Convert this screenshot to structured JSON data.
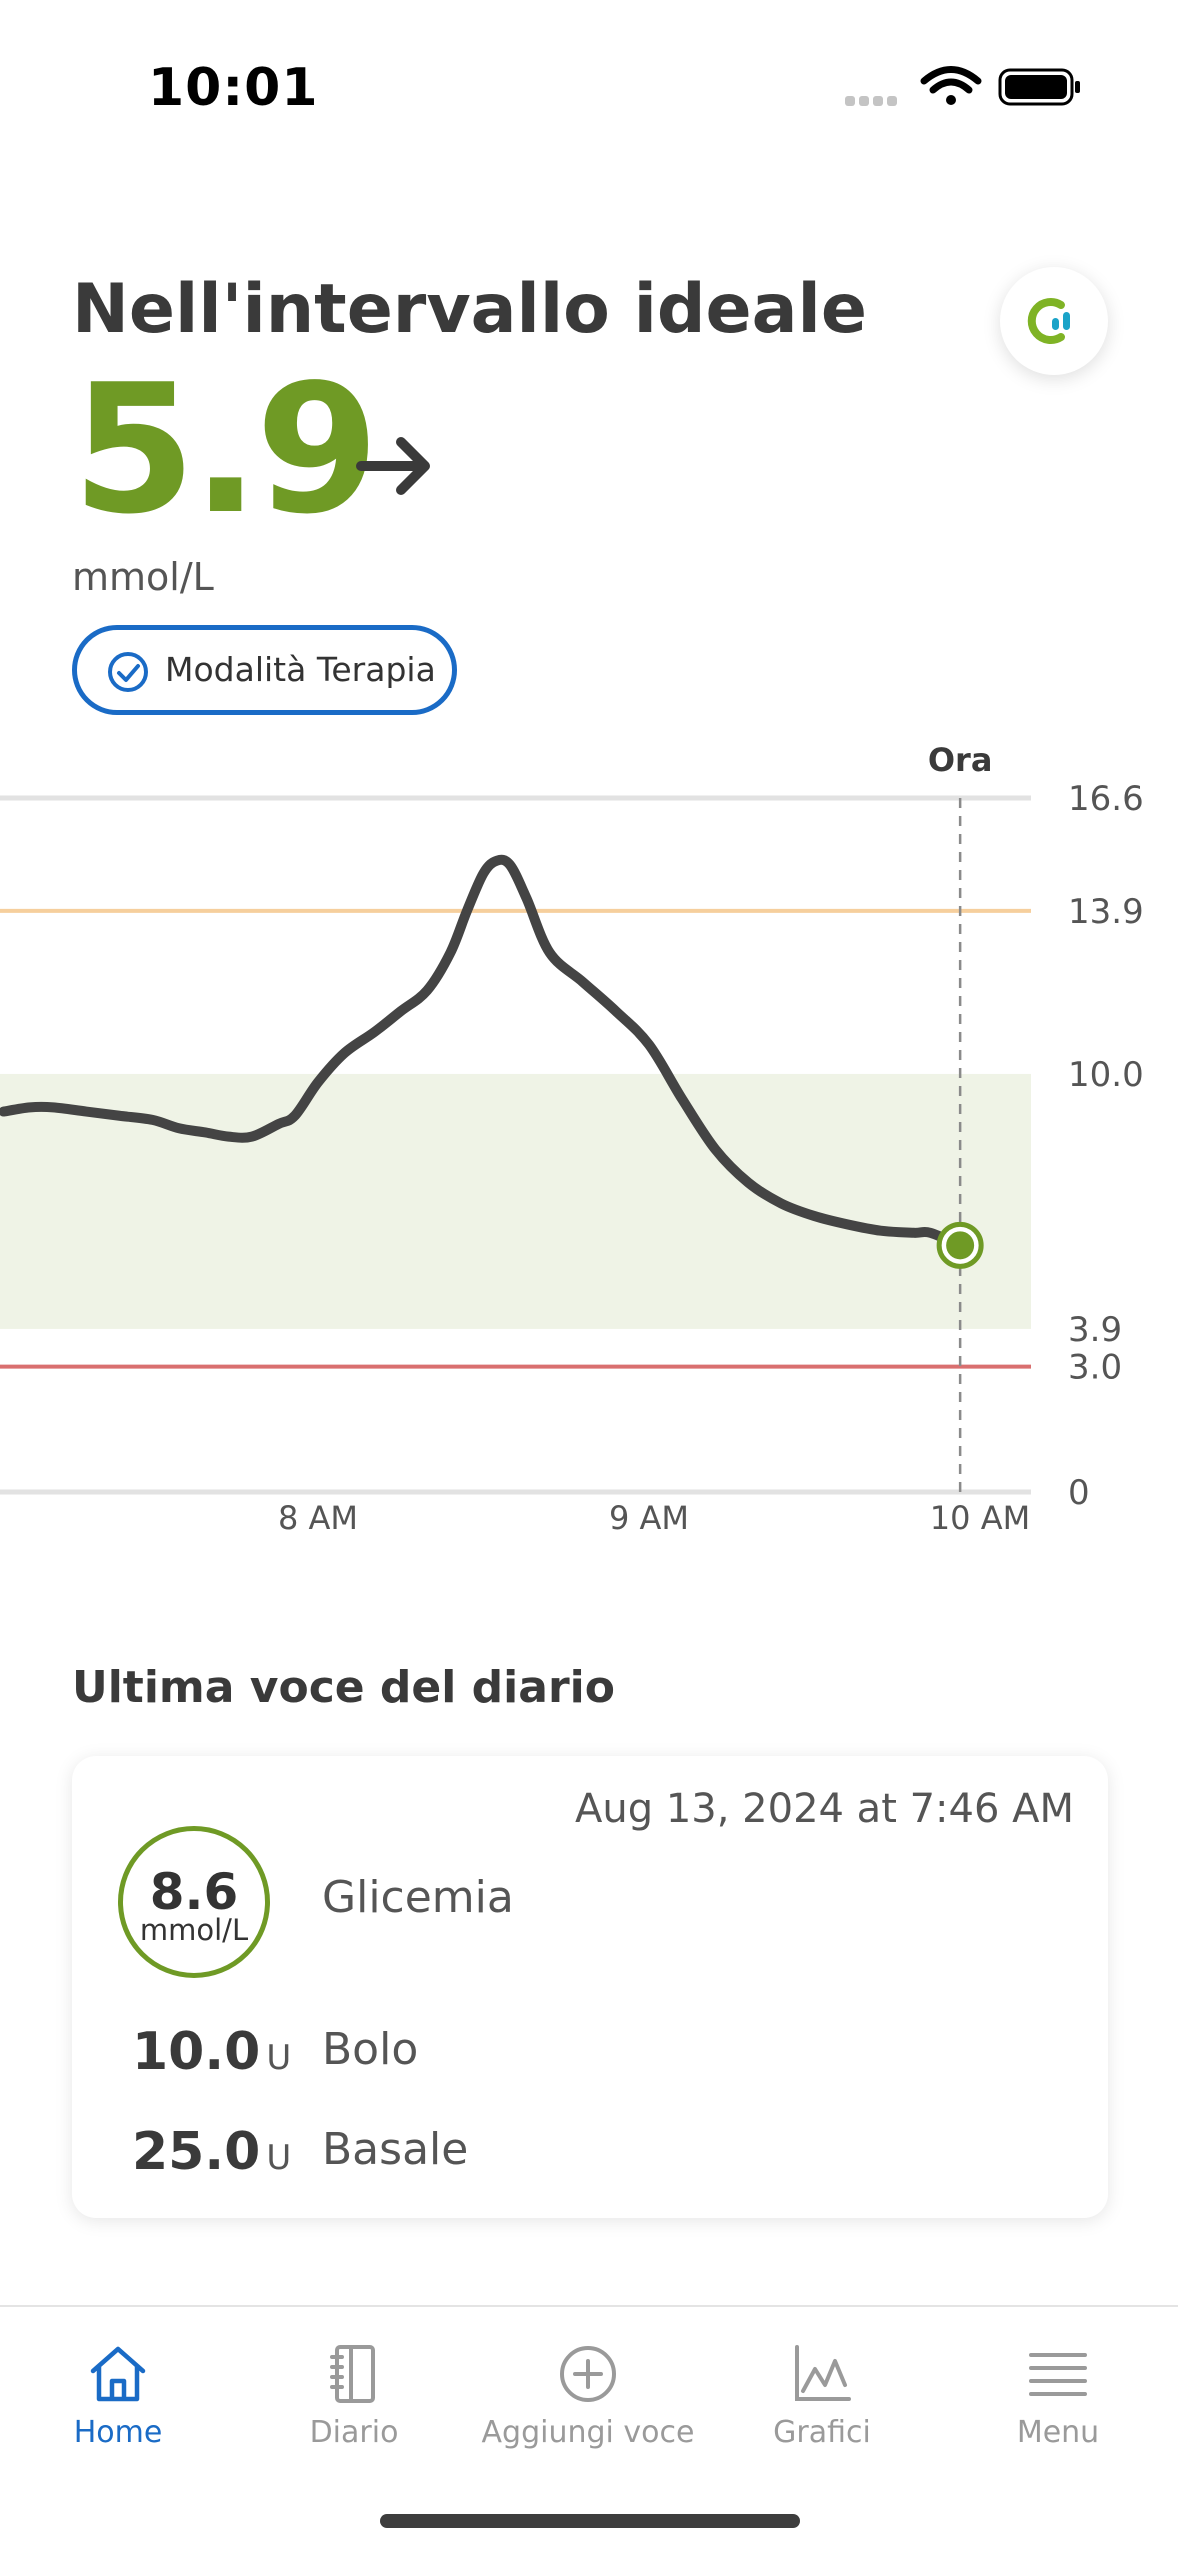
{
  "status_bar": {
    "time": "10:01"
  },
  "header": {
    "title": "Nell'intervallo ideale"
  },
  "glucose": {
    "value": "5.9",
    "unit": "mmol/L",
    "trend": "right-arrow-icon",
    "color": "#6f9a25"
  },
  "therapy_mode": {
    "label": "Modalità Terapia",
    "color": "#1a6bc6"
  },
  "chart_data": {
    "type": "line",
    "now_label": "Ora",
    "x_ticks": [
      "8 AM",
      "9 AM",
      "10 AM"
    ],
    "y_ticks": [
      "16.6",
      "13.9",
      "10.0",
      "3.9",
      "3.0",
      "0"
    ],
    "ylim": [
      0,
      16.6
    ],
    "target_range": [
      3.9,
      10.0
    ],
    "high_threshold": 13.9,
    "low_threshold": 3.0,
    "x_hours": [
      7.05,
      7.13,
      7.2,
      7.3,
      7.4,
      7.5,
      7.58,
      7.66,
      7.73,
      7.8,
      7.88,
      7.93,
      8.0,
      8.08,
      8.17,
      8.25,
      8.33,
      8.4,
      8.45,
      8.5,
      8.54,
      8.58,
      8.63,
      8.7,
      8.8,
      8.9,
      9.0,
      9.1,
      9.2,
      9.3,
      9.4,
      9.5,
      9.6,
      9.7,
      9.8,
      9.85,
      9.94
    ],
    "y_mmol": [
      9.1,
      9.2,
      9.2,
      9.1,
      9.0,
      8.9,
      8.7,
      8.6,
      8.5,
      8.5,
      8.8,
      9.0,
      9.8,
      10.5,
      11.0,
      11.5,
      12.0,
      12.9,
      13.9,
      14.8,
      15.1,
      15.0,
      14.2,
      12.9,
      12.2,
      11.5,
      10.7,
      9.4,
      8.2,
      7.4,
      6.9,
      6.6,
      6.4,
      6.25,
      6.2,
      6.2,
      5.9
    ],
    "colors": {
      "line": "#444444",
      "point": "#6f9a25",
      "target_band": "#eff3e6",
      "high": "#f6cf9d",
      "low": "#d96f6f"
    }
  },
  "diary": {
    "section_title": "Ultima voce del diario",
    "date": "Aug 13, 2024 at 7:46 AM",
    "bg_value": "8.6",
    "bg_unit": "mmol/L",
    "bg_label": "Glicemia",
    "bolus_value": "10.0",
    "bolus_unit": "U",
    "bolus_label": "Bolo",
    "basal_value": "25.0",
    "basal_unit": "U",
    "basal_label": "Basale"
  },
  "tabs": [
    {
      "label": "Home",
      "icon": "home-icon",
      "active": true
    },
    {
      "label": "Diario",
      "icon": "notebook-icon",
      "active": false
    },
    {
      "label": "Aggiungi voce",
      "icon": "plus-circle-icon",
      "active": false
    },
    {
      "label": "Grafici",
      "icon": "chart-icon",
      "active": false
    },
    {
      "label": "Menu",
      "icon": "menu-icon",
      "active": false
    }
  ]
}
